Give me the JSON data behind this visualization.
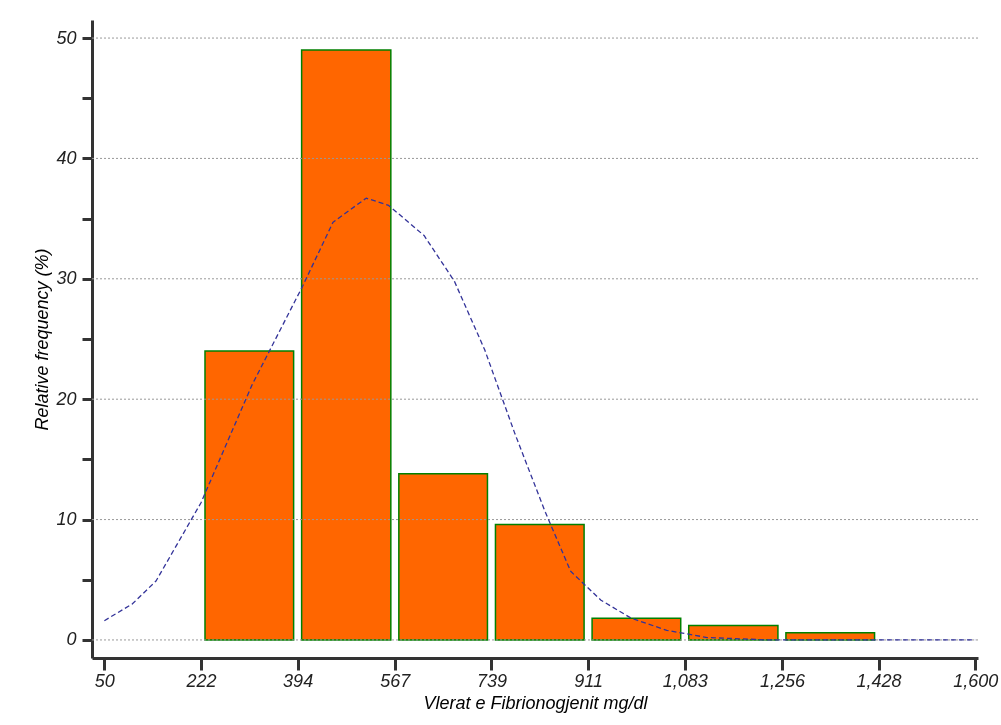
{
  "chart_data": {
    "type": "histogram",
    "xlabel": "Vlerat e  Fibrionogjenit mg/dl",
    "ylabel": "Relative frequency (%)",
    "bins": [
      222,
      394,
      567,
      739,
      911,
      1083,
      1256,
      1428
    ],
    "values": [
      24,
      49,
      13.8,
      9.6,
      1.8,
      1.2,
      0.6
    ],
    "color": "#ff6600",
    "series": [
      {
        "type": "line",
        "color": "#333399",
        "line_style": "dashed",
        "x": [
          50,
          100,
          142,
          222,
          313,
          403,
          457,
          516,
          556,
          619,
          673,
          727,
          781,
          835,
          880,
          934,
          988,
          1051,
          1123,
          1231,
          1600
        ],
        "values": [
          1.6,
          3,
          4.9,
          11.4,
          21.2,
          29.4,
          34.7,
          36.7,
          36.1,
          33.6,
          29.8,
          24.1,
          17.1,
          10.6,
          5.7,
          3.3,
          1.8,
          0.8,
          0.2,
          0,
          0
        ]
      }
    ],
    "xlim": [
      28,
      1605
    ],
    "xticks": [
      50,
      222,
      394,
      567,
      739,
      911,
      {
        "value": 1083,
        "label": "1,083"
      },
      {
        "value": 1256,
        "label": "1,256"
      },
      {
        "value": 1428,
        "label": "1,428"
      },
      {
        "value": 1600,
        "label": "1,600"
      }
    ],
    "ylim": [
      -1.5,
      51.5
    ],
    "yticks": [
      0,
      {
        "value": 5,
        "label": null
      },
      10,
      {
        "value": 15,
        "label": null
      },
      20,
      {
        "value": 25,
        "label": null
      },
      30,
      {
        "value": 35,
        "label": null
      },
      40,
      {
        "value": 45,
        "label": null
      },
      50
    ],
    "grid": "y"
  }
}
